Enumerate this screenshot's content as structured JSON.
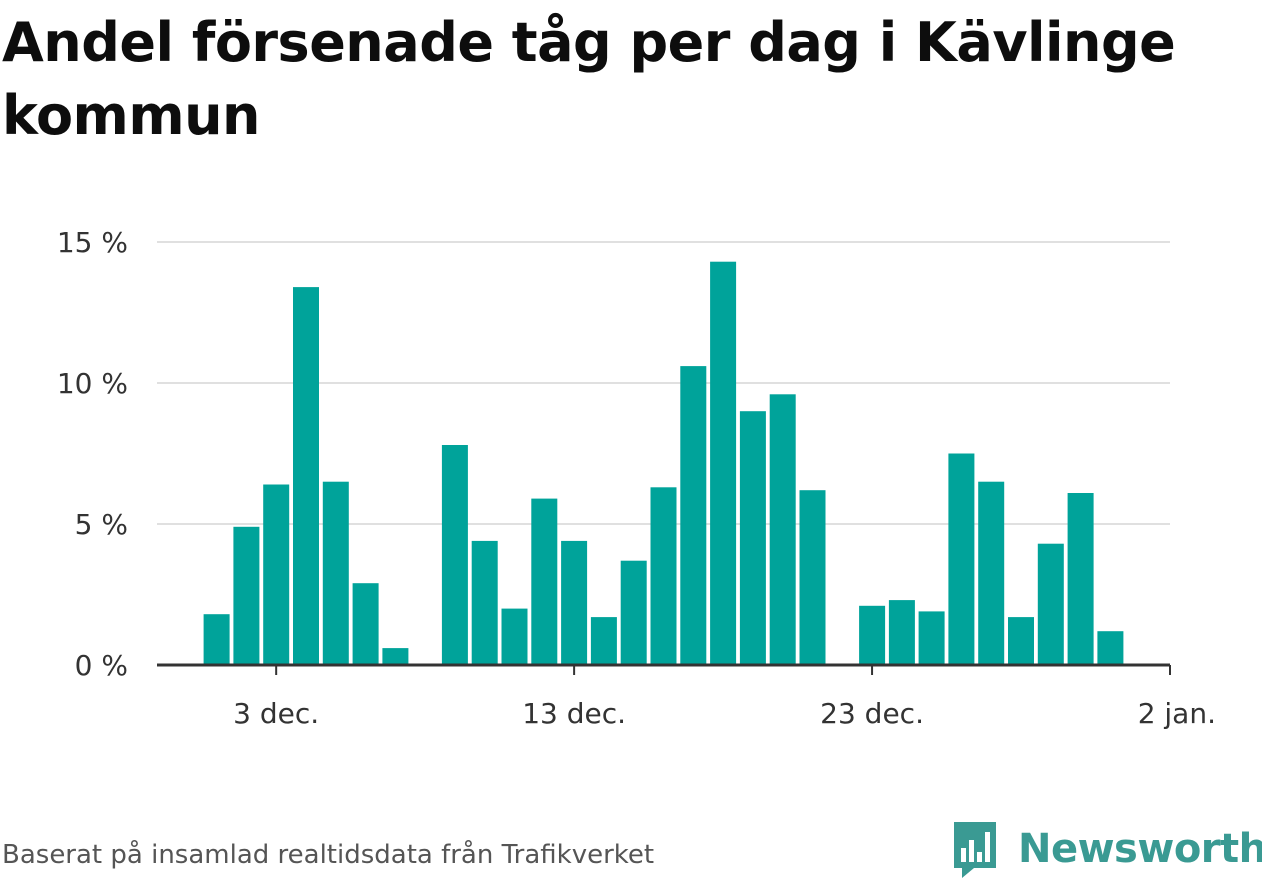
{
  "title": "Andel försenade tåg per dag i Kävlinge kommun",
  "footer": "Baserat på insamlad realtidsdata från Trafikverket",
  "brand": {
    "name": "Newsworthy",
    "icon": "bar-chart-speech-bubble-icon",
    "color": "#3a9a93"
  },
  "colors": {
    "bar": "#00a39a",
    "grid": "#e0e0e0",
    "axis": "#333333"
  },
  "chart_data": {
    "type": "bar",
    "title": "Andel försenade tåg per dag i Kävlinge kommun",
    "xlabel": "",
    "ylabel": "",
    "ylim": [
      0,
      15
    ],
    "y_ticks": [
      {
        "value": 0,
        "label": "0 %"
      },
      {
        "value": 5,
        "label": "5 %"
      },
      {
        "value": 10,
        "label": "10 %"
      },
      {
        "value": 15,
        "label": "15 %"
      }
    ],
    "x_ticks": [
      {
        "date": "2023-12-03",
        "label": "3 dec."
      },
      {
        "date": "2023-12-13",
        "label": "13 dec."
      },
      {
        "date": "2023-12-23",
        "label": "23 dec."
      },
      {
        "date": "2024-01-02",
        "label": "2 jan."
      }
    ],
    "x_range": [
      "2023-11-29",
      "2024-01-02"
    ],
    "grid": true,
    "legend": "none",
    "categories": [
      "2023-12-01",
      "2023-12-02",
      "2023-12-03",
      "2023-12-04",
      "2023-12-05",
      "2023-12-06",
      "2023-12-07",
      "2023-12-08",
      "2023-12-09",
      "2023-12-10",
      "2023-12-11",
      "2023-12-12",
      "2023-12-13",
      "2023-12-14",
      "2023-12-15",
      "2023-12-16",
      "2023-12-17",
      "2023-12-18",
      "2023-12-19",
      "2023-12-20",
      "2023-12-21",
      "2023-12-22",
      "2023-12-23",
      "2023-12-24",
      "2023-12-25",
      "2023-12-26",
      "2023-12-27",
      "2023-12-28",
      "2023-12-29",
      "2023-12-30",
      "2023-12-31"
    ],
    "values": [
      1.8,
      4.9,
      6.4,
      13.4,
      6.5,
      2.9,
      0.6,
      null,
      7.8,
      4.4,
      2.0,
      5.9,
      4.4,
      1.7,
      3.7,
      6.3,
      10.6,
      14.3,
      9.0,
      9.6,
      6.2,
      null,
      2.1,
      2.3,
      1.9,
      7.5,
      6.5,
      1.7,
      4.3,
      6.1,
      1.2
    ]
  }
}
